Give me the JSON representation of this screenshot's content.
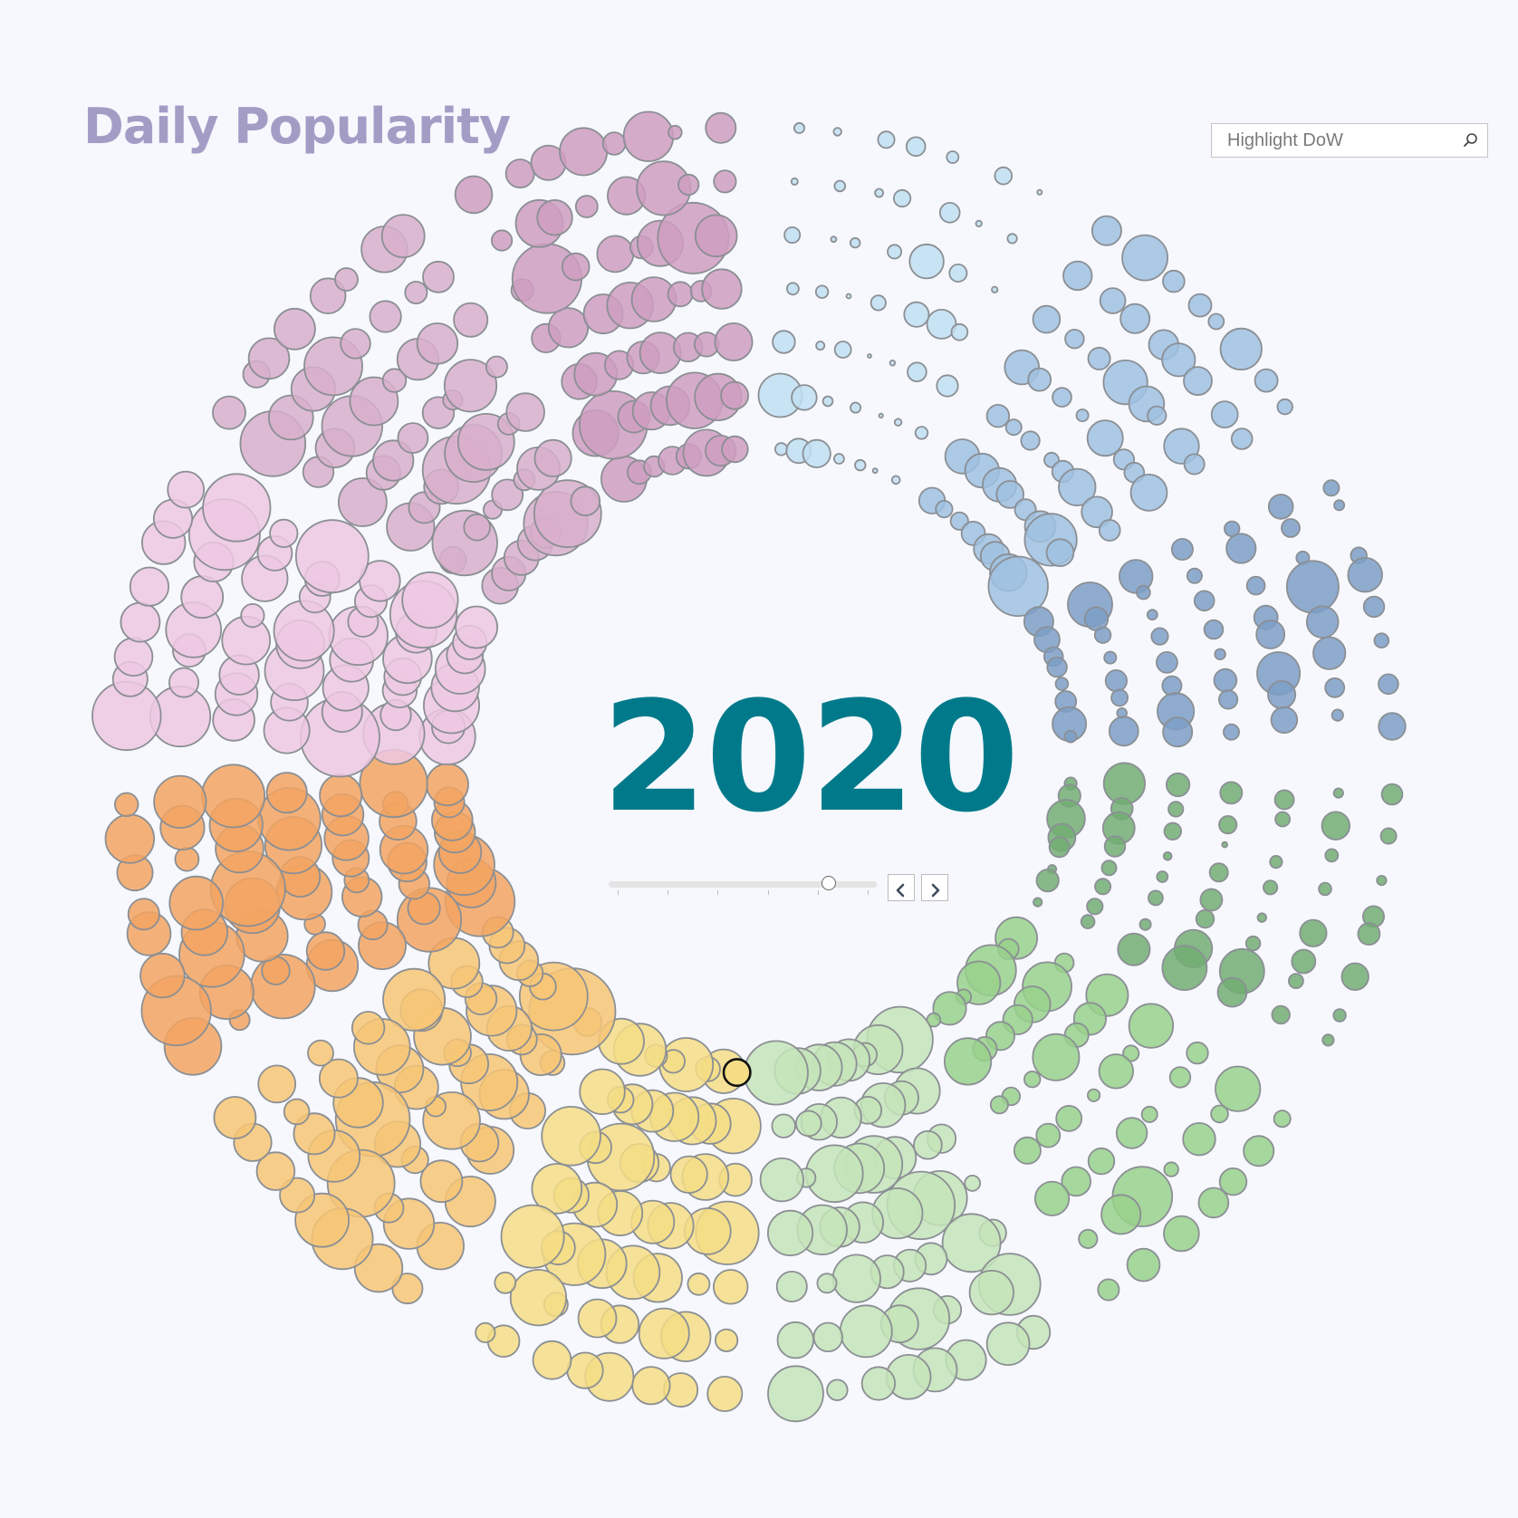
{
  "title": "Daily Popularity",
  "highlight": {
    "placeholder": "Highlight DoW",
    "icon": "search-icon"
  },
  "year": "2020",
  "year_slider": {
    "position": 0.82,
    "ticks": 6,
    "prev_icon": "chevron-left-icon",
    "next_icon": "chevron-right-icon"
  },
  "colors": {
    "title": "#a39dc6",
    "year": "#007a8a",
    "month_palette": [
      "#c0dff1",
      "#9fc1e1",
      "#7d9fc7",
      "#72ad73",
      "#98d18c",
      "#c4e4b8",
      "#f4dd85",
      "#f7c576",
      "#f2a462",
      "#edc8e2",
      "#d8afcb",
      "#cf9ec1"
    ]
  },
  "chart_data": {
    "type": "scatter",
    "layout": "radial calendar, one wedge per month, one bubble per day",
    "months": 12,
    "highlighted_month_index": 6,
    "bubble_size_levels": [
      [
        3,
        5,
        4,
        2,
        3,
        1,
        2
      ],
      [
        6,
        6,
        5,
        5,
        6,
        4,
        5,
        7
      ],
      [
        7,
        6,
        5,
        4,
        3,
        5,
        4,
        3
      ],
      [
        3,
        5,
        6,
        5,
        4,
        2,
        4,
        3
      ],
      [
        6,
        4,
        7,
        8,
        5,
        6,
        4
      ],
      [
        8,
        9,
        7,
        6,
        8,
        9,
        7,
        8
      ],
      [
        9,
        8,
        7,
        9,
        8,
        7,
        8,
        9
      ],
      [
        9,
        10,
        9,
        8,
        9,
        9,
        8,
        10
      ],
      [
        10,
        9,
        8,
        9,
        10,
        8,
        9,
        9
      ],
      [
        8,
        9,
        10,
        9,
        8,
        9,
        8,
        9
      ],
      [
        7,
        8,
        9,
        8,
        7,
        9,
        8,
        8
      ],
      [
        6,
        7,
        8,
        7,
        6,
        8,
        7,
        7
      ]
    ]
  }
}
